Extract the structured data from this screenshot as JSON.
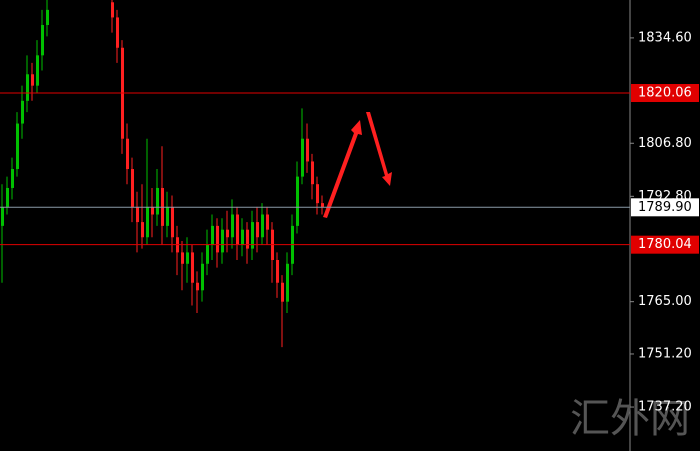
{
  "chart_data": {
    "type": "candlestick",
    "ylim": [
      1725.6,
      1844.6
    ],
    "yticks": [
      {
        "value": 1834.6,
        "label": "1834.60"
      },
      {
        "value": 1806.8,
        "label": "1806.80"
      },
      {
        "value": 1792.8,
        "label": "1792.80"
      },
      {
        "value": 1765.0,
        "label": "1765.00"
      },
      {
        "value": 1751.2,
        "label": "1751.20"
      },
      {
        "value": 1737.2,
        "label": "1737.20"
      }
    ],
    "up_color": "#00c000",
    "down_color": "#ff2020",
    "open": [
      1785,
      1790,
      1795,
      1800,
      1812,
      1818,
      1825,
      1822,
      1830,
      1838,
      null,
      null,
      null,
      null,
      null,
      null,
      null,
      null,
      null,
      null,
      null,
      null,
      1844,
      1840,
      1832,
      1808,
      1800,
      1790,
      1786,
      1782,
      1790,
      1788,
      1795,
      1785,
      1790,
      1782,
      1778,
      1775,
      1778,
      1770,
      1768,
      1775,
      1780,
      1785,
      1778,
      1784,
      1782,
      1788,
      1780,
      1784,
      1779,
      1786,
      1782,
      1788,
      1784,
      1776,
      1770,
      1765,
      1775,
      1785,
      1798,
      1808,
      1802,
      1796,
      1791
    ],
    "high": [
      1796,
      1798,
      1803,
      1815,
      1822,
      1830,
      1828,
      1834,
      1842,
      1846,
      null,
      null,
      null,
      null,
      null,
      null,
      null,
      null,
      null,
      null,
      null,
      null,
      1846,
      1842,
      1834,
      1812,
      1803,
      1794,
      1796,
      1808,
      1795,
      1800,
      1806,
      1794,
      1793,
      1785,
      1781,
      1782,
      1780,
      1773,
      1778,
      1784,
      1788,
      1787,
      1787,
      1789,
      1792,
      1790,
      1787,
      1786,
      1789,
      1790,
      1791,
      1790,
      1786,
      1778,
      1772,
      1778,
      1788,
      1802,
      1816,
      1812,
      1804,
      1798,
      1793
    ],
    "low": [
      1770,
      1788,
      1792,
      1798,
      1808,
      1815,
      1818,
      1820,
      1826,
      1835,
      null,
      null,
      null,
      null,
      null,
      null,
      null,
      null,
      null,
      null,
      null,
      null,
      1836,
      1828,
      1804,
      1796,
      1786,
      1778,
      1779,
      1780,
      1782,
      1785,
      1780,
      1782,
      1778,
      1772,
      1768,
      1770,
      1764,
      1762,
      1765,
      1772,
      1776,
      1774,
      1775,
      1778,
      1779,
      1776,
      1777,
      1775,
      1776,
      1778,
      1780,
      1780,
      1770,
      1766,
      1753,
      1762,
      1772,
      1783,
      1796,
      1799,
      1792,
      1788,
      1788
    ],
    "close": [
      1790,
      1795,
      1800,
      1812,
      1818,
      1825,
      1822,
      1830,
      1838,
      1842,
      null,
      null,
      null,
      null,
      null,
      null,
      null,
      null,
      null,
      null,
      null,
      null,
      1840,
      1832,
      1808,
      1800,
      1790,
      1786,
      1782,
      1790,
      1788,
      1795,
      1785,
      1790,
      1782,
      1778,
      1775,
      1778,
      1770,
      1768,
      1775,
      1780,
      1785,
      1778,
      1784,
      1782,
      1788,
      1780,
      1784,
      1779,
      1786,
      1782,
      1788,
      1784,
      1776,
      1770,
      1765,
      1775,
      1785,
      1798,
      1808,
      1802,
      1796,
      1791,
      1790
    ],
    "hlines": [
      {
        "value": 1820.06,
        "label": "1820.06",
        "color": "#e00000"
      },
      {
        "value": 1789.9,
        "label": "1789.90",
        "color": "#8a9aa8"
      },
      {
        "value": 1780.04,
        "label": "1780.04",
        "color": "#e00000"
      }
    ],
    "watermark": "汇外网"
  }
}
